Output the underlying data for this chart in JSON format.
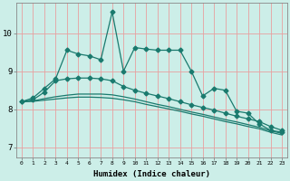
{
  "title": "",
  "xlabel": "Humidex (Indice chaleur)",
  "ylabel": "",
  "bg_color": "#cceee8",
  "grid_color": "#e8a0a0",
  "line_color": "#1a7a6e",
  "xlim": [
    -0.5,
    23.5
  ],
  "ylim": [
    6.75,
    10.8
  ],
  "yticks": [
    7,
    8,
    9,
    10
  ],
  "xticks": [
    0,
    1,
    2,
    3,
    4,
    5,
    6,
    7,
    8,
    9,
    10,
    11,
    12,
    13,
    14,
    15,
    16,
    17,
    18,
    19,
    20,
    21,
    22,
    23
  ],
  "line1_x": [
    0,
    1,
    2,
    3,
    4,
    5,
    6,
    7,
    8,
    9,
    10,
    11,
    12,
    13,
    14,
    15,
    16,
    17,
    18,
    19,
    20,
    21,
    22,
    23
  ],
  "line1_y": [
    8.2,
    8.3,
    8.55,
    8.8,
    9.55,
    9.45,
    9.4,
    9.3,
    10.55,
    9.0,
    9.62,
    9.58,
    9.55,
    9.55,
    9.55,
    9.0,
    8.35,
    8.55,
    8.5,
    7.95,
    7.9,
    7.62,
    7.45,
    7.4
  ],
  "line2_x": [
    0,
    1,
    2,
    3,
    4,
    5,
    6,
    7,
    8,
    9,
    10,
    11,
    12,
    13,
    14,
    15,
    16,
    17,
    18,
    19,
    20,
    21,
    22,
    23
  ],
  "line2_y": [
    8.2,
    8.25,
    8.45,
    8.75,
    8.8,
    8.82,
    8.82,
    8.8,
    8.75,
    8.6,
    8.5,
    8.42,
    8.35,
    8.28,
    8.2,
    8.12,
    8.05,
    7.98,
    7.9,
    7.82,
    7.75,
    7.68,
    7.55,
    7.45
  ],
  "line3_x": [
    0,
    1,
    2,
    3,
    4,
    5,
    6,
    7,
    8,
    9,
    10,
    11,
    12,
    13,
    14,
    15,
    16,
    17,
    18,
    19,
    20,
    21,
    22,
    23
  ],
  "line3_y": [
    8.2,
    8.22,
    8.28,
    8.33,
    8.37,
    8.4,
    8.4,
    8.4,
    8.38,
    8.33,
    8.27,
    8.2,
    8.13,
    8.07,
    8.0,
    7.93,
    7.87,
    7.8,
    7.73,
    7.67,
    7.6,
    7.53,
    7.44,
    7.37
  ],
  "line4_x": [
    0,
    1,
    2,
    3,
    4,
    5,
    6,
    7,
    8,
    9,
    10,
    11,
    12,
    13,
    14,
    15,
    16,
    17,
    18,
    19,
    20,
    21,
    22,
    23
  ],
  "line4_y": [
    8.2,
    8.21,
    8.24,
    8.27,
    8.3,
    8.32,
    8.32,
    8.31,
    8.29,
    8.25,
    8.2,
    8.13,
    8.07,
    8.01,
    7.95,
    7.88,
    7.82,
    7.75,
    7.68,
    7.62,
    7.55,
    7.49,
    7.4,
    7.33
  ]
}
